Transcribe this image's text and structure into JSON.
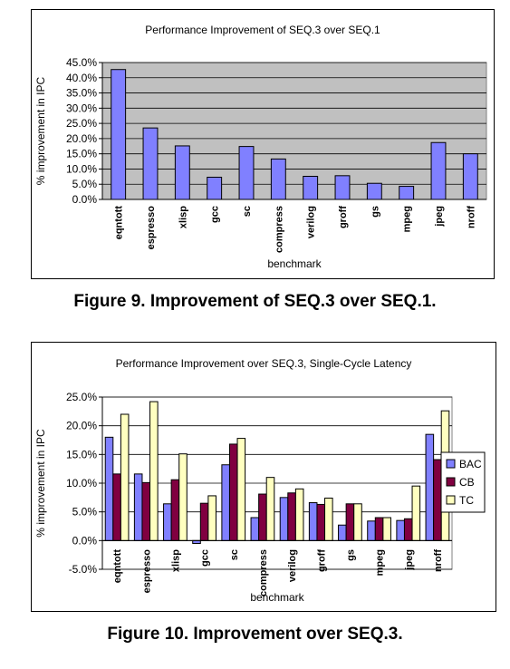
{
  "figure1": {
    "caption": "Figure 9. Improvement of SEQ.3 over SEQ.1."
  },
  "figure2": {
    "caption": "Figure 10. Improvement over SEQ.3."
  },
  "chart_data": [
    {
      "type": "bar",
      "title": "Performance Improvement of SEQ.3 over SEQ.1",
      "xlabel": "benchmark",
      "ylabel": "% improvement in IPC",
      "ylim": [
        0,
        45
      ],
      "yticks": [
        "0.0%",
        "5.0%",
        "10.0%",
        "15.0%",
        "20.0%",
        "25.0%",
        "30.0%",
        "35.0%",
        "40.0%",
        "45.0%"
      ],
      "grid": true,
      "categories": [
        "eqntott",
        "espresso",
        "xlisp",
        "gcc",
        "sc",
        "compress",
        "verilog",
        "groff",
        "gs",
        "mpeg",
        "jpeg",
        "nroff"
      ],
      "series": [
        {
          "values": [
            42.7,
            23.5,
            17.6,
            7.3,
            17.4,
            13.3,
            7.6,
            7.8,
            5.3,
            4.3,
            18.7,
            15.0
          ],
          "color": "#8080ff"
        }
      ],
      "plot_bg": "#c0c0c0"
    },
    {
      "type": "bar",
      "title": "Performance Improvement over SEQ.3, Single-Cycle Latency",
      "xlabel": "benchmark",
      "ylabel": "% improvement in IPC",
      "ylim": [
        -5,
        25
      ],
      "yticks": [
        "-5.0%",
        "0.0%",
        "5.0%",
        "10.0%",
        "15.0%",
        "20.0%",
        "25.0%"
      ],
      "grid": true,
      "legend_position": "right",
      "categories": [
        "eqntott",
        "espresso",
        "xlisp",
        "gcc",
        "sc",
        "compress",
        "verilog",
        "groff",
        "gs",
        "mpeg",
        "jpeg",
        "nroff"
      ],
      "series": [
        {
          "name": "BAC",
          "color": "#8080ff",
          "values": [
            18.0,
            11.6,
            6.4,
            -0.5,
            13.2,
            4.0,
            7.5,
            6.6,
            2.7,
            3.4,
            3.5,
            18.5
          ]
        },
        {
          "name": "CB",
          "color": "#800040",
          "values": [
            11.6,
            10.1,
            10.6,
            6.5,
            16.8,
            8.1,
            8.3,
            6.3,
            6.4,
            4.0,
            3.8,
            14.1
          ]
        },
        {
          "name": "TC",
          "color": "#ffffc0",
          "values": [
            22.0,
            24.2,
            15.1,
            7.8,
            17.8,
            11.0,
            9.0,
            7.4,
            6.4,
            4.0,
            9.5,
            22.6
          ]
        }
      ],
      "plot_bg": "#ffffff"
    }
  ]
}
